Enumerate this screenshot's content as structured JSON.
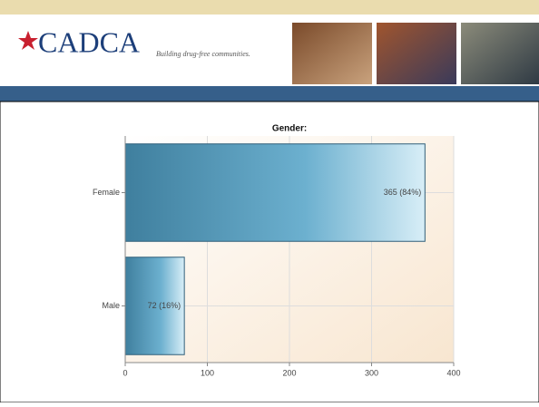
{
  "header": {
    "logo": "CADCA",
    "tagline": "Building drug-free communities."
  },
  "chart_data": {
    "type": "hbar",
    "title": "Gender:",
    "categories": [
      "Female",
      "Male"
    ],
    "values": [
      365,
      72
    ],
    "value_labels": [
      "365 (84%)",
      "72 (16%)"
    ],
    "color": "#5ea3c3",
    "xlim": [
      0,
      400
    ],
    "xticks": [
      0,
      100,
      200,
      300,
      400
    ],
    "grid": true
  }
}
